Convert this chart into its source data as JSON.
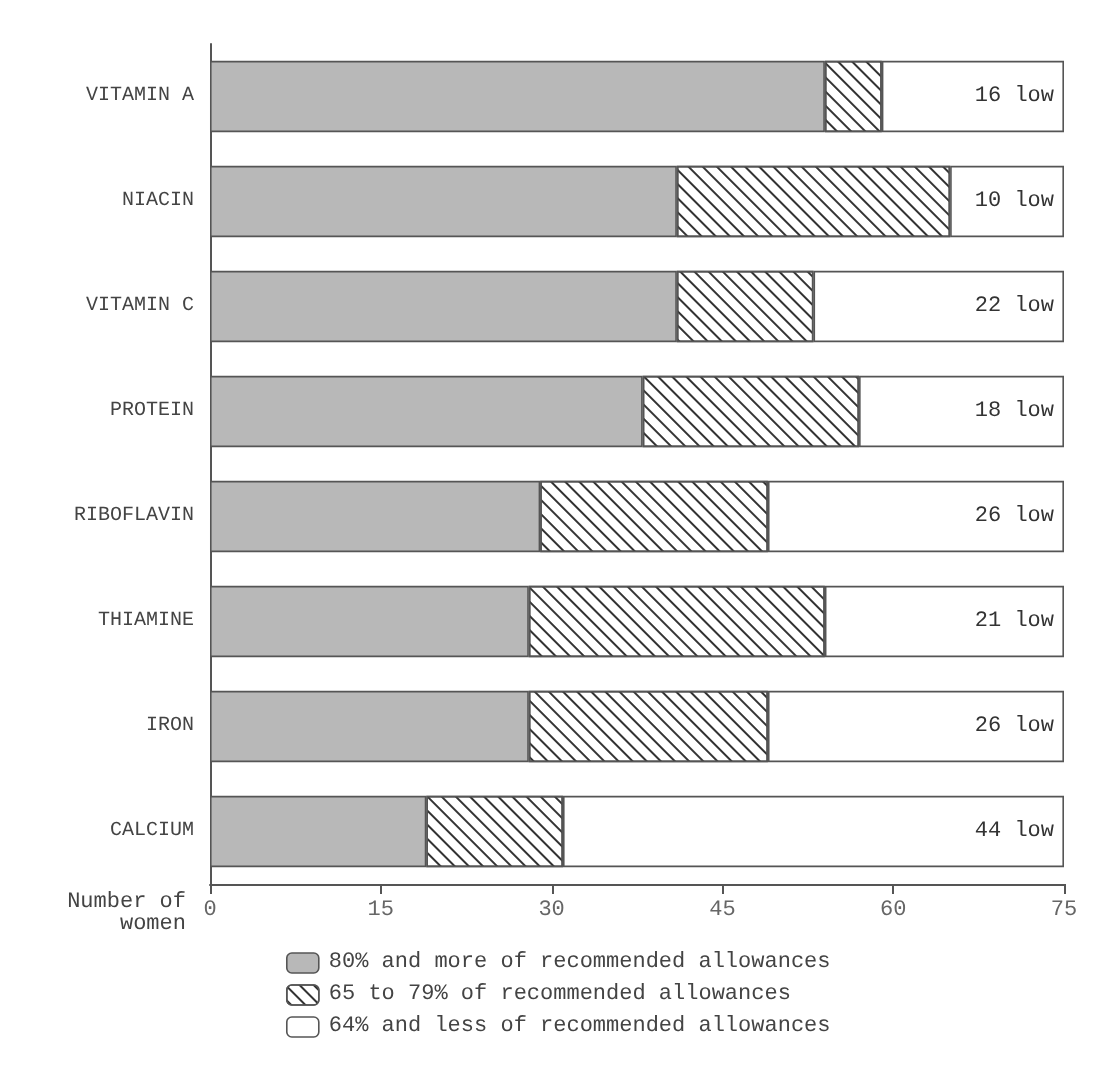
{
  "chart_data": {
    "type": "bar",
    "orientation": "horizontal",
    "stacked": true,
    "xlabel": "Number of\nwomen",
    "categories": [
      "VITAMIN A",
      "NIACIN",
      "VITAMIN C",
      "PROTEIN",
      "RIBOFLAVIN",
      "THIAMINE",
      "IRON",
      "CALCIUM"
    ],
    "series": [
      {
        "name": "80% and more of recommended allowances",
        "color": "#b8b8b8",
        "values": [
          54,
          41,
          41,
          38,
          29,
          28,
          28,
          19
        ]
      },
      {
        "name": "65 to 79% of recommended allowances",
        "color": "#ffffff",
        "values": [
          5,
          24,
          12,
          19,
          20,
          26,
          21,
          12
        ]
      },
      {
        "name": "64% and less of recommended allowances",
        "color": "#ffffff",
        "values": [
          16,
          10,
          22,
          18,
          26,
          21,
          26,
          44
        ],
        "value_labels": [
          "16 low",
          "10 low",
          "22 low",
          "18 low",
          "26 low",
          "21 low",
          "26 low",
          "44 low"
        ]
      }
    ],
    "xlim": [
      0,
      75
    ],
    "xticks": [
      0,
      15,
      30,
      45,
      60,
      75
    ],
    "grid": false,
    "legend": "bottom"
  }
}
